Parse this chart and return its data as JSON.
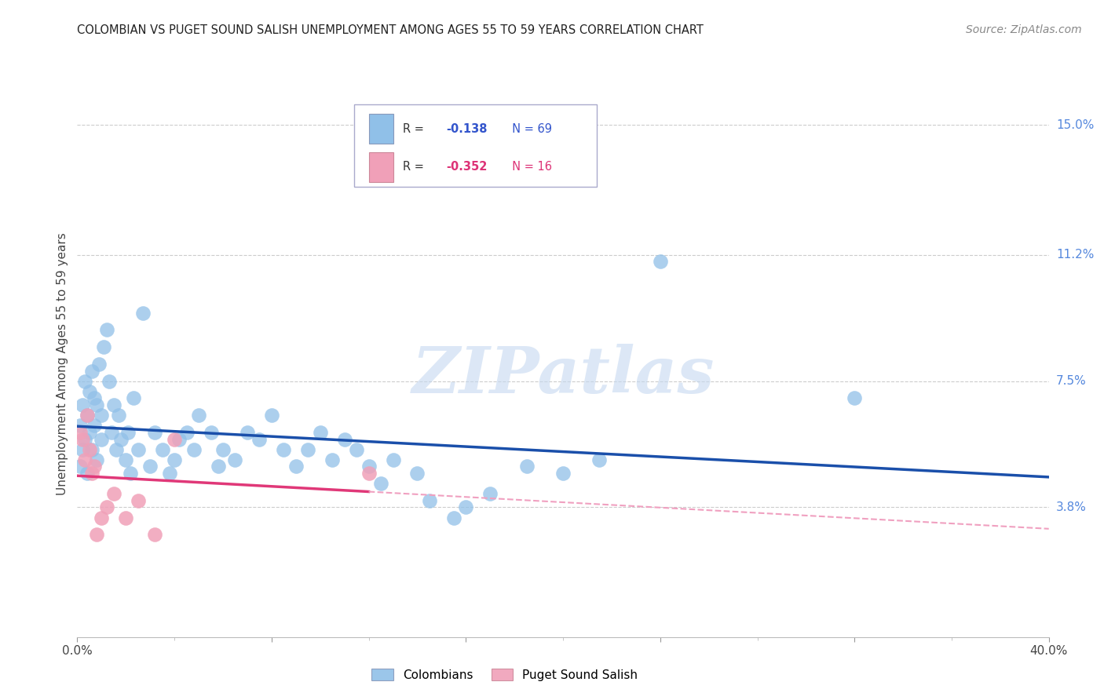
{
  "title": "COLOMBIAN VS PUGET SOUND SALISH UNEMPLOYMENT AMONG AGES 55 TO 59 YEARS CORRELATION CHART",
  "source": "Source: ZipAtlas.com",
  "ylabel": "Unemployment Among Ages 55 to 59 years",
  "xlim": [
    0.0,
    0.4
  ],
  "ylim": [
    0.0,
    0.16
  ],
  "ytick_right_labels": [
    "15.0%",
    "11.2%",
    "7.5%",
    "3.8%"
  ],
  "ytick_right_values": [
    0.15,
    0.112,
    0.075,
    0.038
  ],
  "grid_color": "#cccccc",
  "background_color": "#ffffff",
  "colombian_color": "#90c0e8",
  "puget_color": "#f0a0b8",
  "trend_colombian_color": "#1a4faa",
  "trend_puget_color": "#e03878",
  "trend_puget_dashed_color": "#f0a0c0",
  "r_colombian": -0.138,
  "n_colombian": 69,
  "r_puget": -0.352,
  "n_puget": 16,
  "colombian_x": [
    0.001,
    0.001,
    0.002,
    0.002,
    0.003,
    0.003,
    0.004,
    0.004,
    0.005,
    0.005,
    0.006,
    0.006,
    0.007,
    0.007,
    0.008,
    0.008,
    0.009,
    0.01,
    0.01,
    0.011,
    0.012,
    0.013,
    0.014,
    0.015,
    0.016,
    0.017,
    0.018,
    0.02,
    0.021,
    0.022,
    0.023,
    0.025,
    0.027,
    0.03,
    0.032,
    0.035,
    0.038,
    0.04,
    0.042,
    0.045,
    0.048,
    0.05,
    0.055,
    0.058,
    0.06,
    0.065,
    0.07,
    0.075,
    0.08,
    0.085,
    0.09,
    0.095,
    0.1,
    0.105,
    0.11,
    0.115,
    0.12,
    0.125,
    0.13,
    0.14,
    0.145,
    0.155,
    0.16,
    0.17,
    0.185,
    0.2,
    0.215,
    0.24,
    0.32
  ],
  "colombian_y": [
    0.062,
    0.05,
    0.055,
    0.068,
    0.058,
    0.075,
    0.065,
    0.048,
    0.06,
    0.072,
    0.078,
    0.055,
    0.07,
    0.062,
    0.068,
    0.052,
    0.08,
    0.058,
    0.065,
    0.085,
    0.09,
    0.075,
    0.06,
    0.068,
    0.055,
    0.065,
    0.058,
    0.052,
    0.06,
    0.048,
    0.07,
    0.055,
    0.095,
    0.05,
    0.06,
    0.055,
    0.048,
    0.052,
    0.058,
    0.06,
    0.055,
    0.065,
    0.06,
    0.05,
    0.055,
    0.052,
    0.06,
    0.058,
    0.065,
    0.055,
    0.05,
    0.055,
    0.06,
    0.052,
    0.058,
    0.055,
    0.05,
    0.045,
    0.052,
    0.048,
    0.04,
    0.035,
    0.038,
    0.042,
    0.05,
    0.048,
    0.052,
    0.11,
    0.07
  ],
  "puget_x": [
    0.001,
    0.002,
    0.003,
    0.004,
    0.005,
    0.006,
    0.007,
    0.008,
    0.01,
    0.012,
    0.015,
    0.02,
    0.025,
    0.032,
    0.04,
    0.12
  ],
  "puget_y": [
    0.06,
    0.058,
    0.052,
    0.065,
    0.055,
    0.048,
    0.05,
    0.03,
    0.035,
    0.038,
    0.042,
    0.035,
    0.04,
    0.03,
    0.058,
    0.048
  ],
  "watermark_text": "ZIPatlas",
  "watermark_color": "#c5d8f0",
  "legend_r_col_color": "#3355cc",
  "legend_r_pug_color": "#dd3377"
}
